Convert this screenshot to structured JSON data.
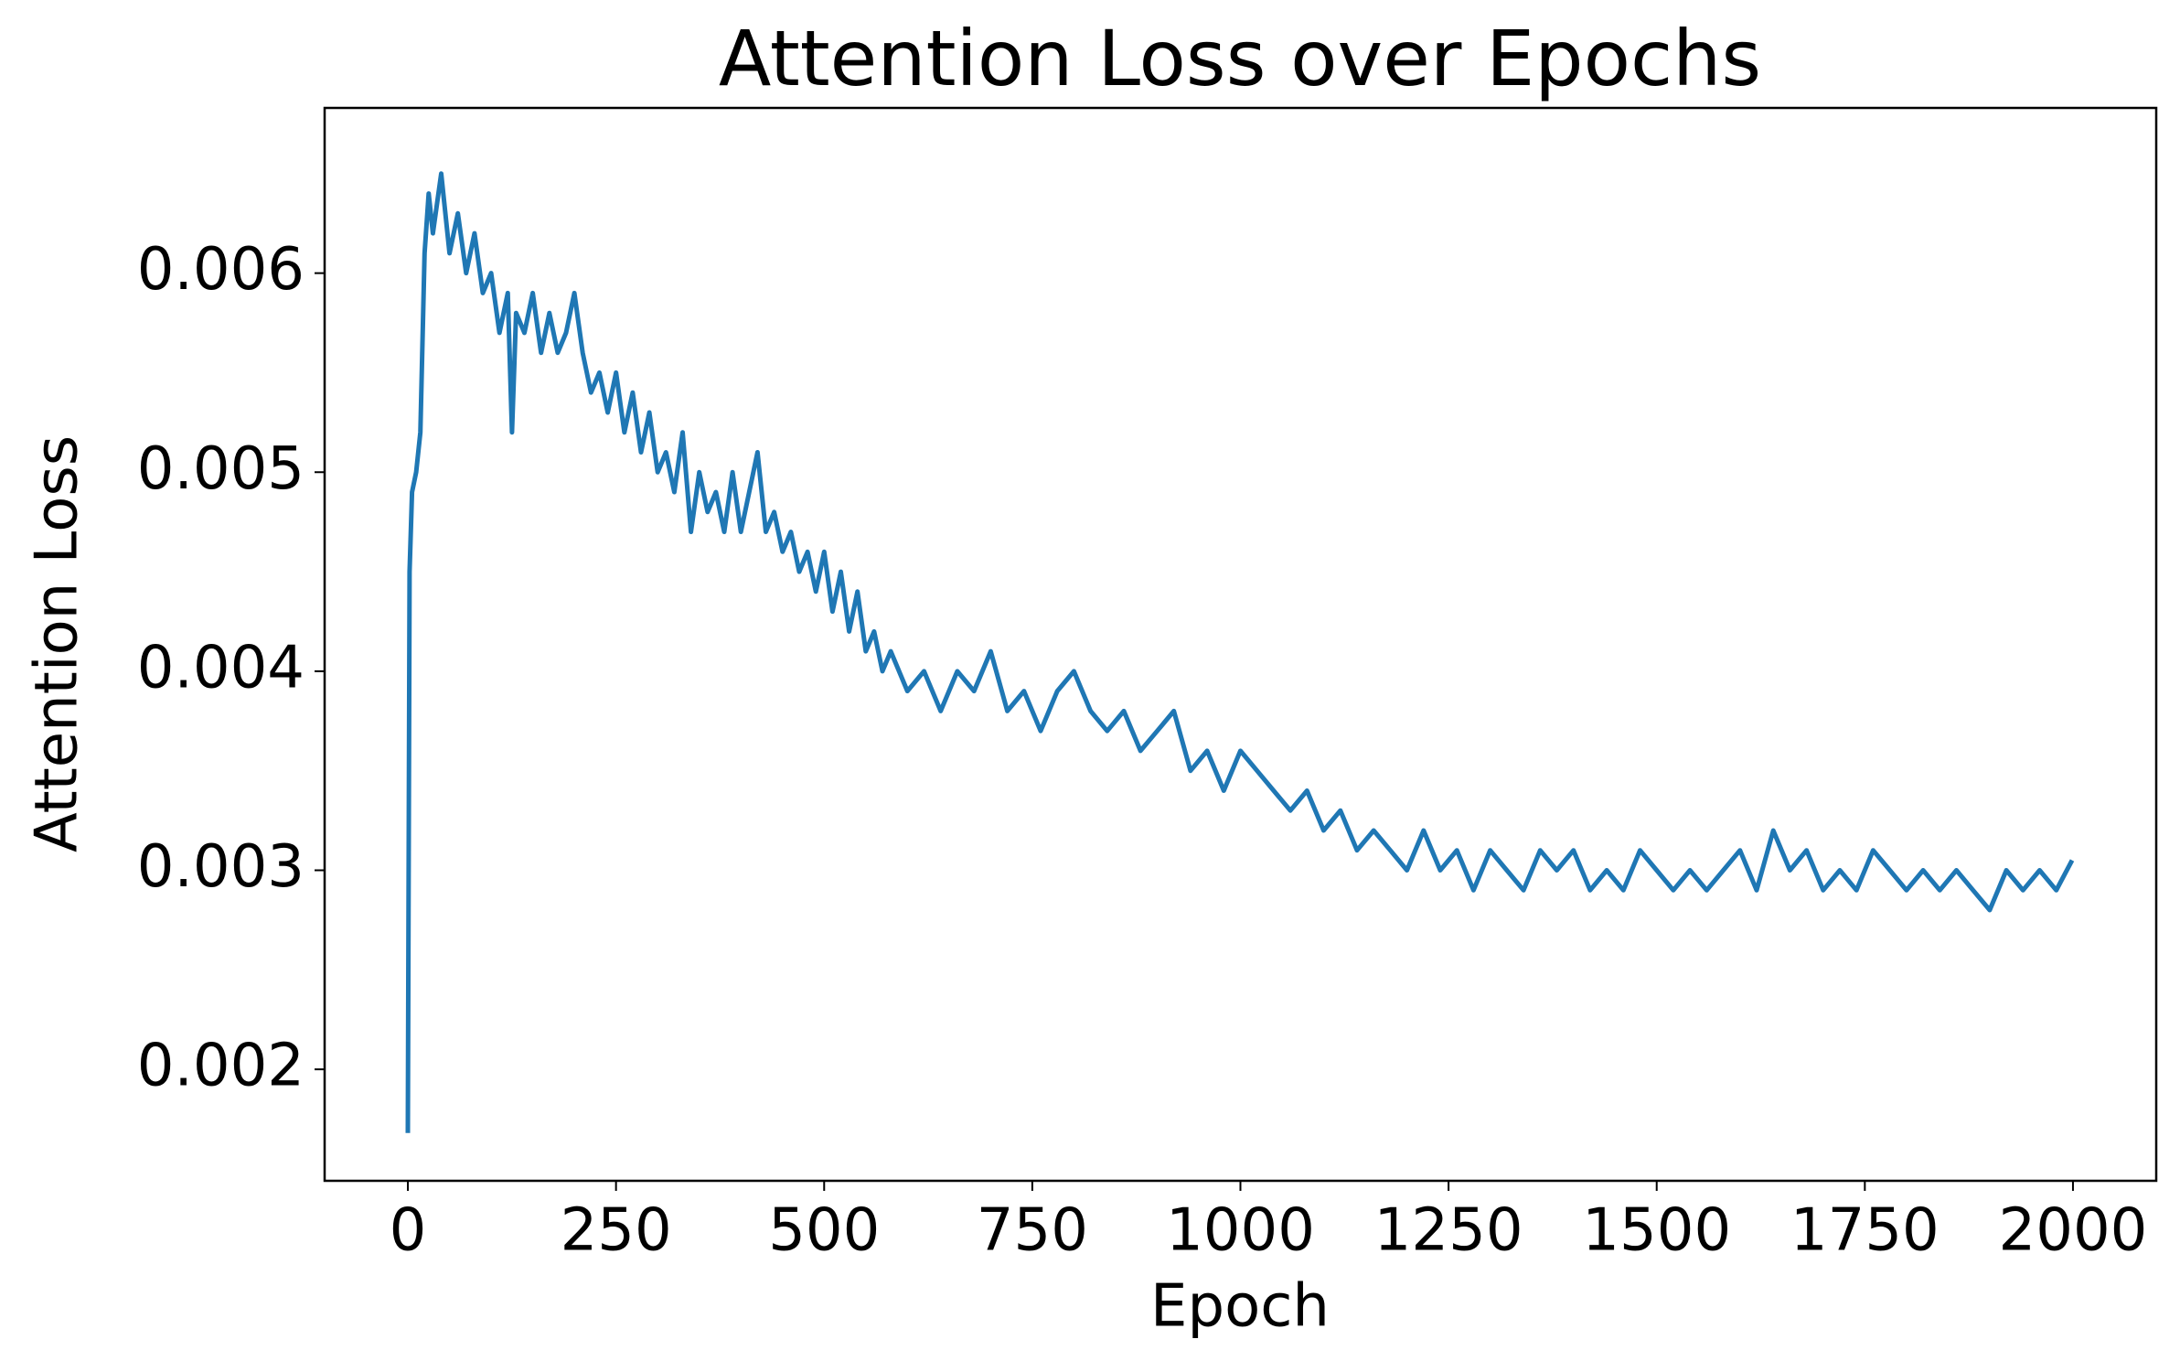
{
  "chart_data": {
    "type": "line",
    "title": "Attention Loss over Epochs",
    "xlabel": "Epoch",
    "ylabel": "Attention Loss",
    "color": "#1f77b4",
    "x": [
      0,
      2,
      5,
      10,
      15,
      20,
      25,
      30,
      40,
      50,
      60,
      70,
      80,
      90,
      100,
      110,
      120,
      125,
      130,
      140,
      150,
      160,
      170,
      180,
      190,
      200,
      210,
      220,
      230,
      240,
      250,
      260,
      270,
      280,
      290,
      300,
      310,
      320,
      330,
      340,
      350,
      360,
      370,
      380,
      390,
      400,
      410,
      420,
      430,
      440,
      450,
      460,
      470,
      480,
      490,
      500,
      510,
      520,
      530,
      540,
      550,
      560,
      570,
      580,
      600,
      620,
      640,
      660,
      680,
      700,
      720,
      740,
      760,
      780,
      800,
      820,
      840,
      860,
      880,
      900,
      920,
      940,
      960,
      980,
      1000,
      1020,
      1040,
      1060,
      1080,
      1100,
      1120,
      1140,
      1160,
      1180,
      1200,
      1220,
      1240,
      1260,
      1280,
      1300,
      1320,
      1340,
      1360,
      1380,
      1400,
      1420,
      1440,
      1460,
      1480,
      1500,
      1520,
      1540,
      1560,
      1580,
      1600,
      1620,
      1640,
      1660,
      1680,
      1700,
      1720,
      1740,
      1760,
      1780,
      1800,
      1820,
      1840,
      1860,
      1880,
      1900,
      1920,
      1940,
      1960,
      1980,
      1999
    ],
    "values": [
      0.00168,
      0.0045,
      0.0049,
      0.005,
      0.0052,
      0.0061,
      0.0064,
      0.0062,
      0.0065,
      0.0061,
      0.0063,
      0.006,
      0.0062,
      0.0059,
      0.006,
      0.0057,
      0.0059,
      0.0052,
      0.0058,
      0.0057,
      0.0059,
      0.0056,
      0.0058,
      0.0056,
      0.0057,
      0.0059,
      0.0056,
      0.0054,
      0.0055,
      0.0053,
      0.0055,
      0.0052,
      0.0054,
      0.0051,
      0.0053,
      0.005,
      0.0051,
      0.0049,
      0.0052,
      0.0047,
      0.005,
      0.0048,
      0.0049,
      0.0047,
      0.005,
      0.0047,
      0.0049,
      0.0051,
      0.0047,
      0.0048,
      0.0046,
      0.0047,
      0.0045,
      0.0046,
      0.0044,
      0.0046,
      0.0043,
      0.0045,
      0.0042,
      0.0044,
      0.0041,
      0.0042,
      0.004,
      0.0041,
      0.0039,
      0.004,
      0.0038,
      0.004,
      0.0039,
      0.0041,
      0.0038,
      0.0039,
      0.0037,
      0.0039,
      0.004,
      0.0038,
      0.0037,
      0.0038,
      0.0036,
      0.0037,
      0.0038,
      0.0035,
      0.0036,
      0.0034,
      0.0036,
      0.0035,
      0.0034,
      0.0033,
      0.0034,
      0.0032,
      0.0033,
      0.0031,
      0.0032,
      0.0031,
      0.003,
      0.0032,
      0.003,
      0.0031,
      0.0029,
      0.0031,
      0.003,
      0.0029,
      0.0031,
      0.003,
      0.0031,
      0.0029,
      0.003,
      0.0029,
      0.0031,
      0.003,
      0.0029,
      0.003,
      0.0029,
      0.003,
      0.0031,
      0.0029,
      0.0032,
      0.003,
      0.0031,
      0.0029,
      0.003,
      0.0029,
      0.0031,
      0.003,
      0.0029,
      0.003,
      0.0029,
      0.003,
      0.0029,
      0.0028,
      0.003,
      0.0029,
      0.003,
      0.0029,
      0.00305
    ],
    "xlim": [
      -100,
      2100
    ],
    "xticks": [
      0,
      250,
      500,
      750,
      1000,
      1250,
      1500,
      1750,
      2000
    ],
    "ylim": [
      0.00144,
      0.00683
    ],
    "yticks": [
      0.002,
      0.003,
      0.004,
      0.005,
      0.006
    ]
  }
}
